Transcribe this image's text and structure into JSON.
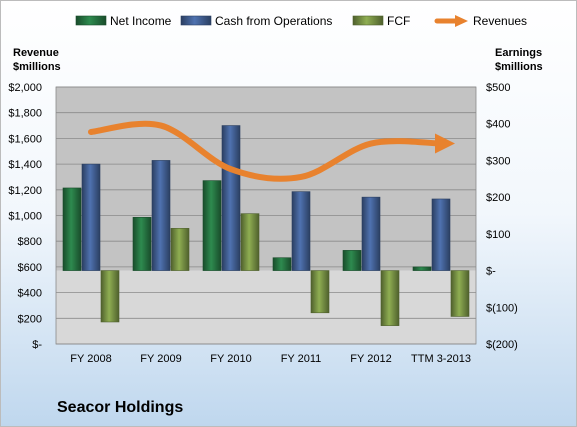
{
  "chart_data": {
    "type": "bar",
    "title": "Seacor Holdings",
    "categories": [
      "FY 2008",
      "FY 2009",
      "FY 2010",
      "FY 2011",
      "FY 2012",
      "TTM 3-2013"
    ],
    "series": [
      {
        "name": "Net Income",
        "axis": "right",
        "kind": "bar",
        "color": "#2e8b4f",
        "values": [
          225,
          145,
          245,
          35,
          55,
          10
        ]
      },
      {
        "name": "Cash from Operations",
        "axis": "right",
        "kind": "bar",
        "color": "#4f72b0",
        "values": [
          290,
          300,
          395,
          215,
          200,
          195
        ]
      },
      {
        "name": "FCF",
        "axis": "right",
        "kind": "bar",
        "color": "#8fae52",
        "values": [
          -140,
          115,
          155,
          -115,
          -150,
          -125
        ]
      },
      {
        "name": "Revenues",
        "axis": "left",
        "kind": "line",
        "color": "#e8822e",
        "values": [
          1650,
          1700,
          1360,
          1300,
          1560,
          1560
        ]
      }
    ],
    "left_axis": {
      "label_lines": [
        "Revenue",
        "$millions"
      ],
      "ylim": [
        0,
        2000
      ],
      "ticks": [
        0,
        200,
        400,
        600,
        800,
        1000,
        1200,
        1400,
        1600,
        1800,
        2000
      ],
      "tick_labels": [
        "$-",
        "$200",
        "$400",
        "$600",
        "$800",
        "$1,000",
        "$1,200",
        "$1,400",
        "$1,600",
        "$1,800",
        "$2,000"
      ]
    },
    "right_axis": {
      "label_lines": [
        "Earnings",
        "$millions"
      ],
      "ylim": [
        -200,
        500
      ],
      "ticks": [
        -200,
        -100,
        0,
        100,
        200,
        300,
        400,
        500
      ],
      "tick_labels": [
        "$(200)",
        "$(100)",
        "$-",
        "$100",
        "$200",
        "$300",
        "$400",
        "$500"
      ]
    },
    "legend": {
      "position": "top",
      "items": [
        "Net Income",
        "Cash from Operations",
        "FCF",
        "Revenues"
      ]
    },
    "grid": true
  }
}
